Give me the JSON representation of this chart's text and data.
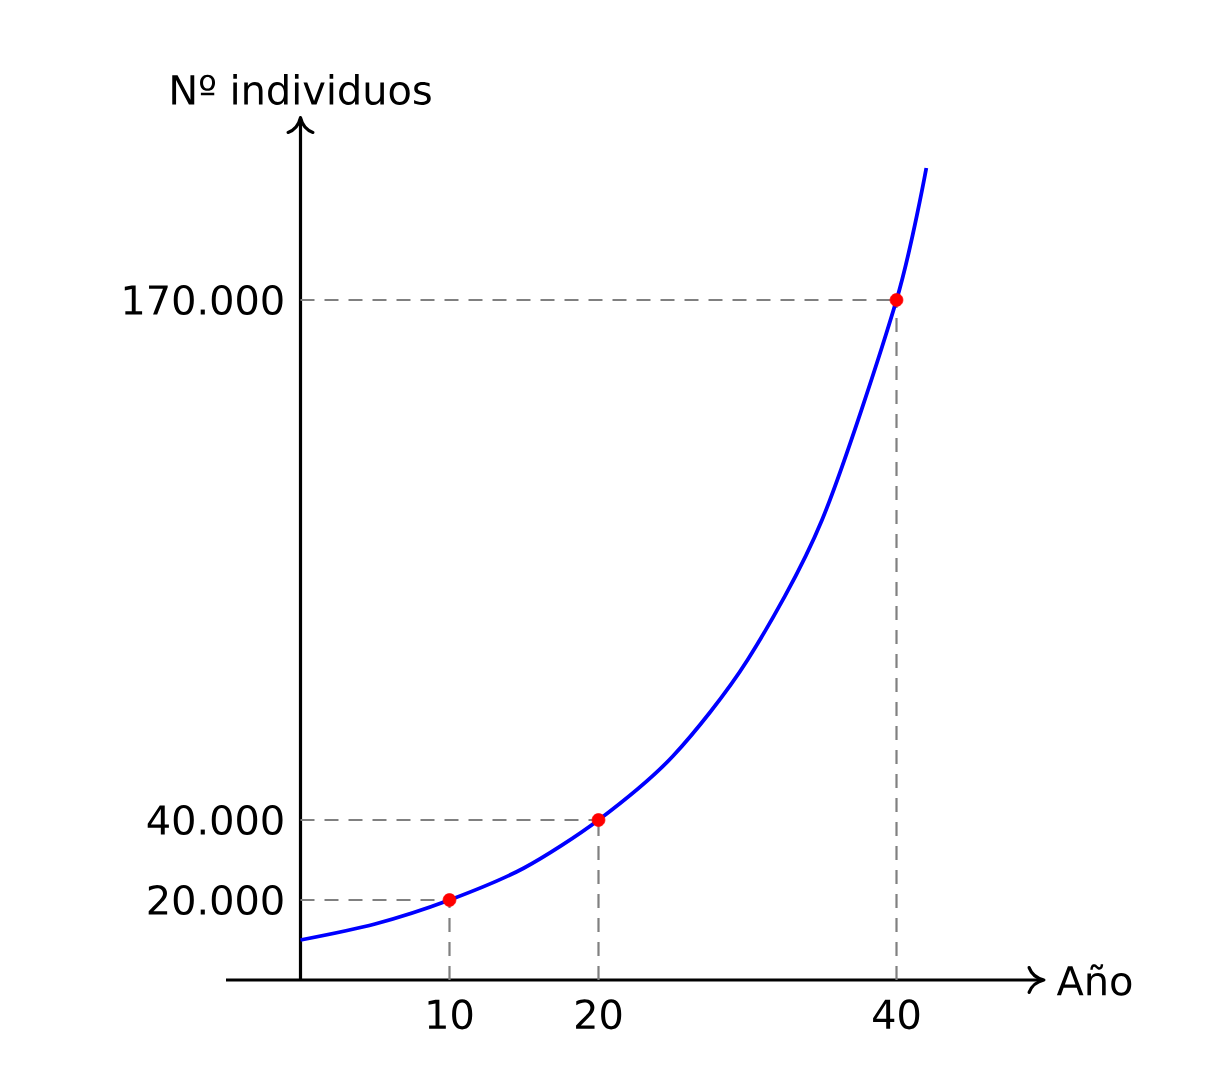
{
  "chart_data": {
    "type": "line",
    "xlabel": "Año",
    "ylabel": "Nº individuos",
    "xlim": [
      -5,
      50
    ],
    "ylim": [
      0,
      216000
    ],
    "xticks": [
      10,
      20,
      40
    ],
    "yticks": [
      {
        "value": 20000,
        "label": "20.000"
      },
      {
        "value": 40000,
        "label": "40.000"
      },
      {
        "value": 170000,
        "label": "170.000"
      }
    ],
    "grid": false,
    "marker": "circle",
    "series": [
      {
        "marker": "none",
        "color": "#0000ff",
        "x": [
          0,
          5,
          10,
          15,
          20,
          25,
          30,
          35,
          40,
          42
        ],
        "values": [
          10000,
          14000,
          20000,
          28000,
          40000,
          56000,
          80000,
          115000,
          170000,
          203000
        ]
      },
      {
        "type": "scatter",
        "color": "#ff0000",
        "x": [
          10,
          20,
          40
        ],
        "values": [
          20000,
          40000,
          170000
        ]
      }
    ],
    "ref_lines": [
      {
        "axis": "x",
        "value": 10,
        "color": "#808080",
        "line_style": "dashed"
      },
      {
        "axis": "x",
        "value": 20,
        "color": "#808080",
        "line_style": "dashed"
      },
      {
        "axis": "x",
        "value": 40,
        "color": "#808080",
        "line_style": "dashed"
      },
      {
        "axis": "y",
        "value": 20000,
        "color": "#808080",
        "line_style": "dashed"
      },
      {
        "axis": "y",
        "value": 40000,
        "color": "#808080",
        "line_style": "dashed"
      },
      {
        "axis": "y",
        "value": 170000,
        "color": "#808080",
        "line_style": "dashed"
      }
    ]
  }
}
